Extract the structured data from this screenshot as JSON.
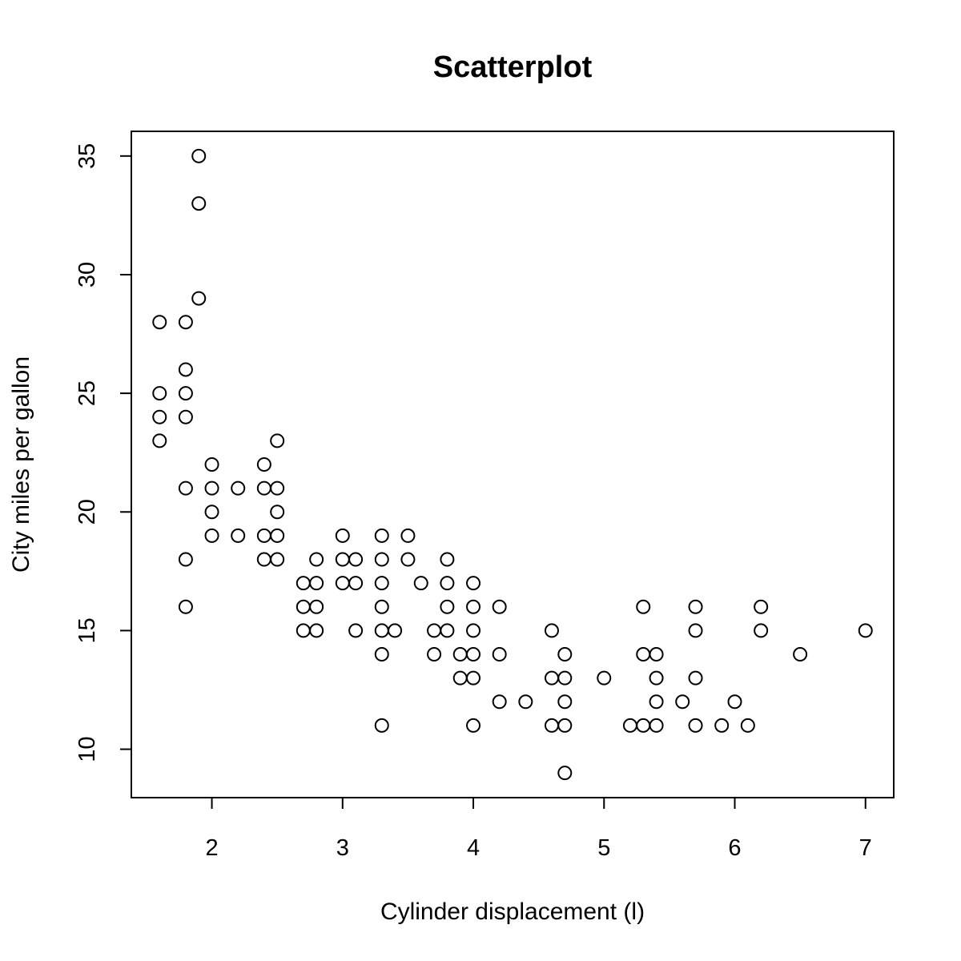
{
  "chart_data": {
    "type": "scatter",
    "title": "Scatterplot",
    "xlabel": "Cylinder displacement (l)",
    "ylabel": "City miles per gallon",
    "xlim": [
      1.6,
      7.0
    ],
    "ylim": [
      9,
      35
    ],
    "xticks": [
      2,
      3,
      4,
      5,
      6,
      7
    ],
    "yticks": [
      10,
      15,
      20,
      25,
      30,
      35
    ],
    "grid": false,
    "points": [
      [
        1.6,
        28
      ],
      [
        1.6,
        25
      ],
      [
        1.6,
        24
      ],
      [
        1.6,
        23
      ],
      [
        1.8,
        28
      ],
      [
        1.8,
        26
      ],
      [
        1.8,
        25
      ],
      [
        1.8,
        24
      ],
      [
        1.8,
        21
      ],
      [
        1.8,
        18
      ],
      [
        1.8,
        16
      ],
      [
        1.9,
        35
      ],
      [
        1.9,
        33
      ],
      [
        1.9,
        29
      ],
      [
        2.0,
        22
      ],
      [
        2.0,
        21
      ],
      [
        2.0,
        20
      ],
      [
        2.0,
        19
      ],
      [
        2.2,
        21
      ],
      [
        2.2,
        19
      ],
      [
        2.4,
        22
      ],
      [
        2.4,
        21
      ],
      [
        2.4,
        19
      ],
      [
        2.4,
        18
      ],
      [
        2.5,
        23
      ],
      [
        2.5,
        21
      ],
      [
        2.5,
        20
      ],
      [
        2.5,
        19
      ],
      [
        2.5,
        18
      ],
      [
        2.7,
        17
      ],
      [
        2.7,
        16
      ],
      [
        2.7,
        15
      ],
      [
        2.8,
        18
      ],
      [
        2.8,
        17
      ],
      [
        2.8,
        16
      ],
      [
        2.8,
        15
      ],
      [
        3.0,
        19
      ],
      [
        3.0,
        18
      ],
      [
        3.0,
        17
      ],
      [
        3.1,
        18
      ],
      [
        3.1,
        17
      ],
      [
        3.1,
        15
      ],
      [
        3.3,
        19
      ],
      [
        3.3,
        18
      ],
      [
        3.3,
        17
      ],
      [
        3.3,
        16
      ],
      [
        3.3,
        15
      ],
      [
        3.3,
        14
      ],
      [
        3.3,
        11
      ],
      [
        3.4,
        15
      ],
      [
        3.5,
        19
      ],
      [
        3.5,
        18
      ],
      [
        3.6,
        17
      ],
      [
        3.7,
        15
      ],
      [
        3.7,
        14
      ],
      [
        3.8,
        18
      ],
      [
        3.8,
        17
      ],
      [
        3.8,
        16
      ],
      [
        3.8,
        15
      ],
      [
        3.9,
        14
      ],
      [
        3.9,
        13
      ],
      [
        4.0,
        17
      ],
      [
        4.0,
        16
      ],
      [
        4.0,
        15
      ],
      [
        4.0,
        14
      ],
      [
        4.0,
        13
      ],
      [
        4.0,
        11
      ],
      [
        4.2,
        16
      ],
      [
        4.2,
        14
      ],
      [
        4.2,
        12
      ],
      [
        4.4,
        12
      ],
      [
        4.6,
        15
      ],
      [
        4.6,
        13
      ],
      [
        4.6,
        11
      ],
      [
        4.7,
        14
      ],
      [
        4.7,
        13
      ],
      [
        4.7,
        12
      ],
      [
        4.7,
        11
      ],
      [
        4.7,
        9
      ],
      [
        5.0,
        13
      ],
      [
        5.2,
        11
      ],
      [
        5.3,
        16
      ],
      [
        5.3,
        14
      ],
      [
        5.3,
        11
      ],
      [
        5.4,
        14
      ],
      [
        5.4,
        13
      ],
      [
        5.4,
        12
      ],
      [
        5.4,
        11
      ],
      [
        5.6,
        12
      ],
      [
        5.7,
        16
      ],
      [
        5.7,
        15
      ],
      [
        5.7,
        13
      ],
      [
        5.7,
        11
      ],
      [
        5.9,
        11
      ],
      [
        6.0,
        12
      ],
      [
        6.1,
        11
      ],
      [
        6.2,
        16
      ],
      [
        6.2,
        15
      ],
      [
        6.5,
        14
      ],
      [
        7.0,
        15
      ]
    ]
  }
}
